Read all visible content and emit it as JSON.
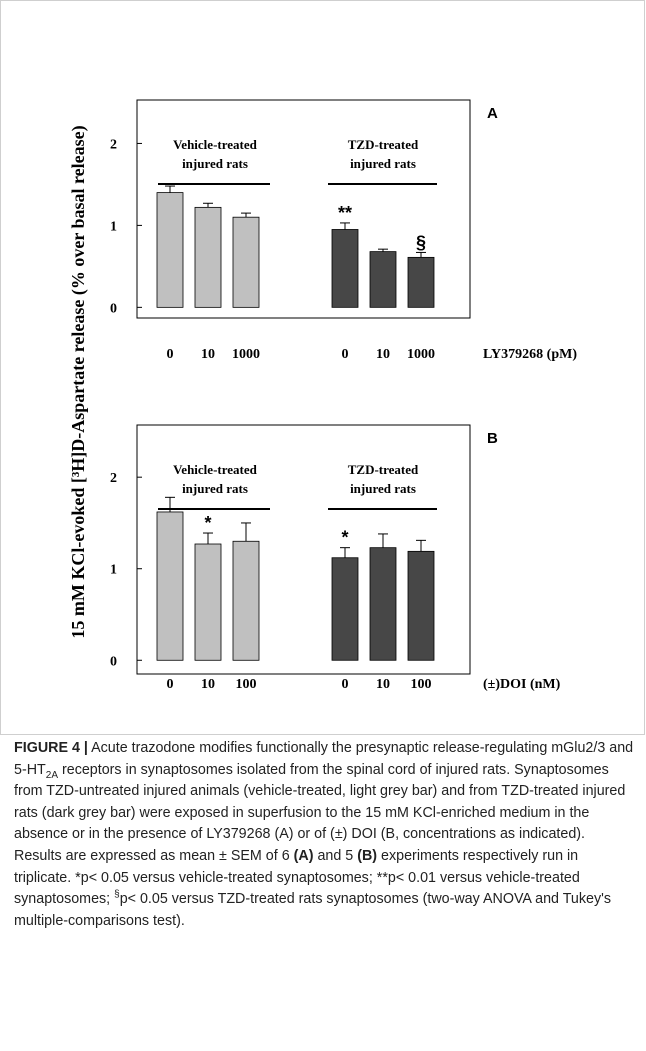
{
  "ylabel": "15 mM KCl-evoked [³H]D-Aspartate release (% over basal release)",
  "chart_data": [
    {
      "type": "bar",
      "panel": "A",
      "xlabel": "LY379268 (pM)",
      "groups": [
        {
          "label": [
            "Vehicle-treated",
            "injured rats"
          ]
        },
        {
          "label": [
            "TZD-treated",
            "injured rats"
          ]
        }
      ],
      "categories": [
        "0",
        "10",
        "1000",
        "0",
        "10",
        "1000"
      ],
      "values": [
        1.4,
        1.22,
        1.1,
        0.95,
        0.68,
        0.61
      ],
      "errors": [
        0.08,
        0.05,
        0.05,
        0.08,
        0.03,
        0.06
      ],
      "colors": [
        "#c0c0c0",
        "#c0c0c0",
        "#c0c0c0",
        "#474747",
        "#474747",
        "#474747"
      ],
      "markers": [
        null,
        null,
        null,
        "**",
        null,
        "§"
      ],
      "ylim": [
        -0.13,
        2.53
      ],
      "yticks": [
        0,
        1,
        2
      ]
    },
    {
      "type": "bar",
      "panel": "B",
      "xlabel": "(±)DOI (nM)",
      "groups": [
        {
          "label": [
            "Vehicle-treated",
            "injured rats"
          ]
        },
        {
          "label": [
            "TZD-treated",
            "injured rats"
          ]
        }
      ],
      "categories": [
        "0",
        "10",
        "100",
        "0",
        "10",
        "100"
      ],
      "values": [
        1.62,
        1.27,
        1.3,
        1.12,
        1.23,
        1.19
      ],
      "errors": [
        0.16,
        0.12,
        0.2,
        0.11,
        0.15,
        0.12
      ],
      "colors": [
        "#c0c0c0",
        "#c0c0c0",
        "#c0c0c0",
        "#474747",
        "#474747",
        "#474747"
      ],
      "markers": [
        null,
        "*",
        null,
        "*",
        null,
        null
      ],
      "ylim": [
        -0.15,
        2.57
      ],
      "yticks": [
        0,
        1,
        2
      ]
    }
  ],
  "caption": {
    "label": "FIGURE 4 |",
    "segments": [
      "Acute trazodone modifies functionally the presynaptic release-regulating mGlu2/3 and 5-HT",
      "2A",
      " receptors in synaptosomes isolated from the spinal cord of injured rats. Synaptosomes from TZD-untreated injured animals (vehicle-treated, light grey bar) and from TZD-treated injured rats (dark grey bar) were exposed in superfusion to the 15 mM KCl-enriched medium in the absence or in the presence of LY379268 (A) or of (±) DOI (B, concentrations as indicated). Results are expressed as mean ± SEM of 6 ",
      "(A)",
      " and 5 ",
      "(B)",
      " experiments respectively run in triplicate. *p< 0.05 versus vehicle-treated synaptosomes; **p< 0.01 versus vehicle-treated synaptosomes; ",
      "§",
      "p< 0.05 versus TZD-treated rats synaptosomes (two-way ANOVA and Tukey's multiple-comparisons test)."
    ]
  }
}
